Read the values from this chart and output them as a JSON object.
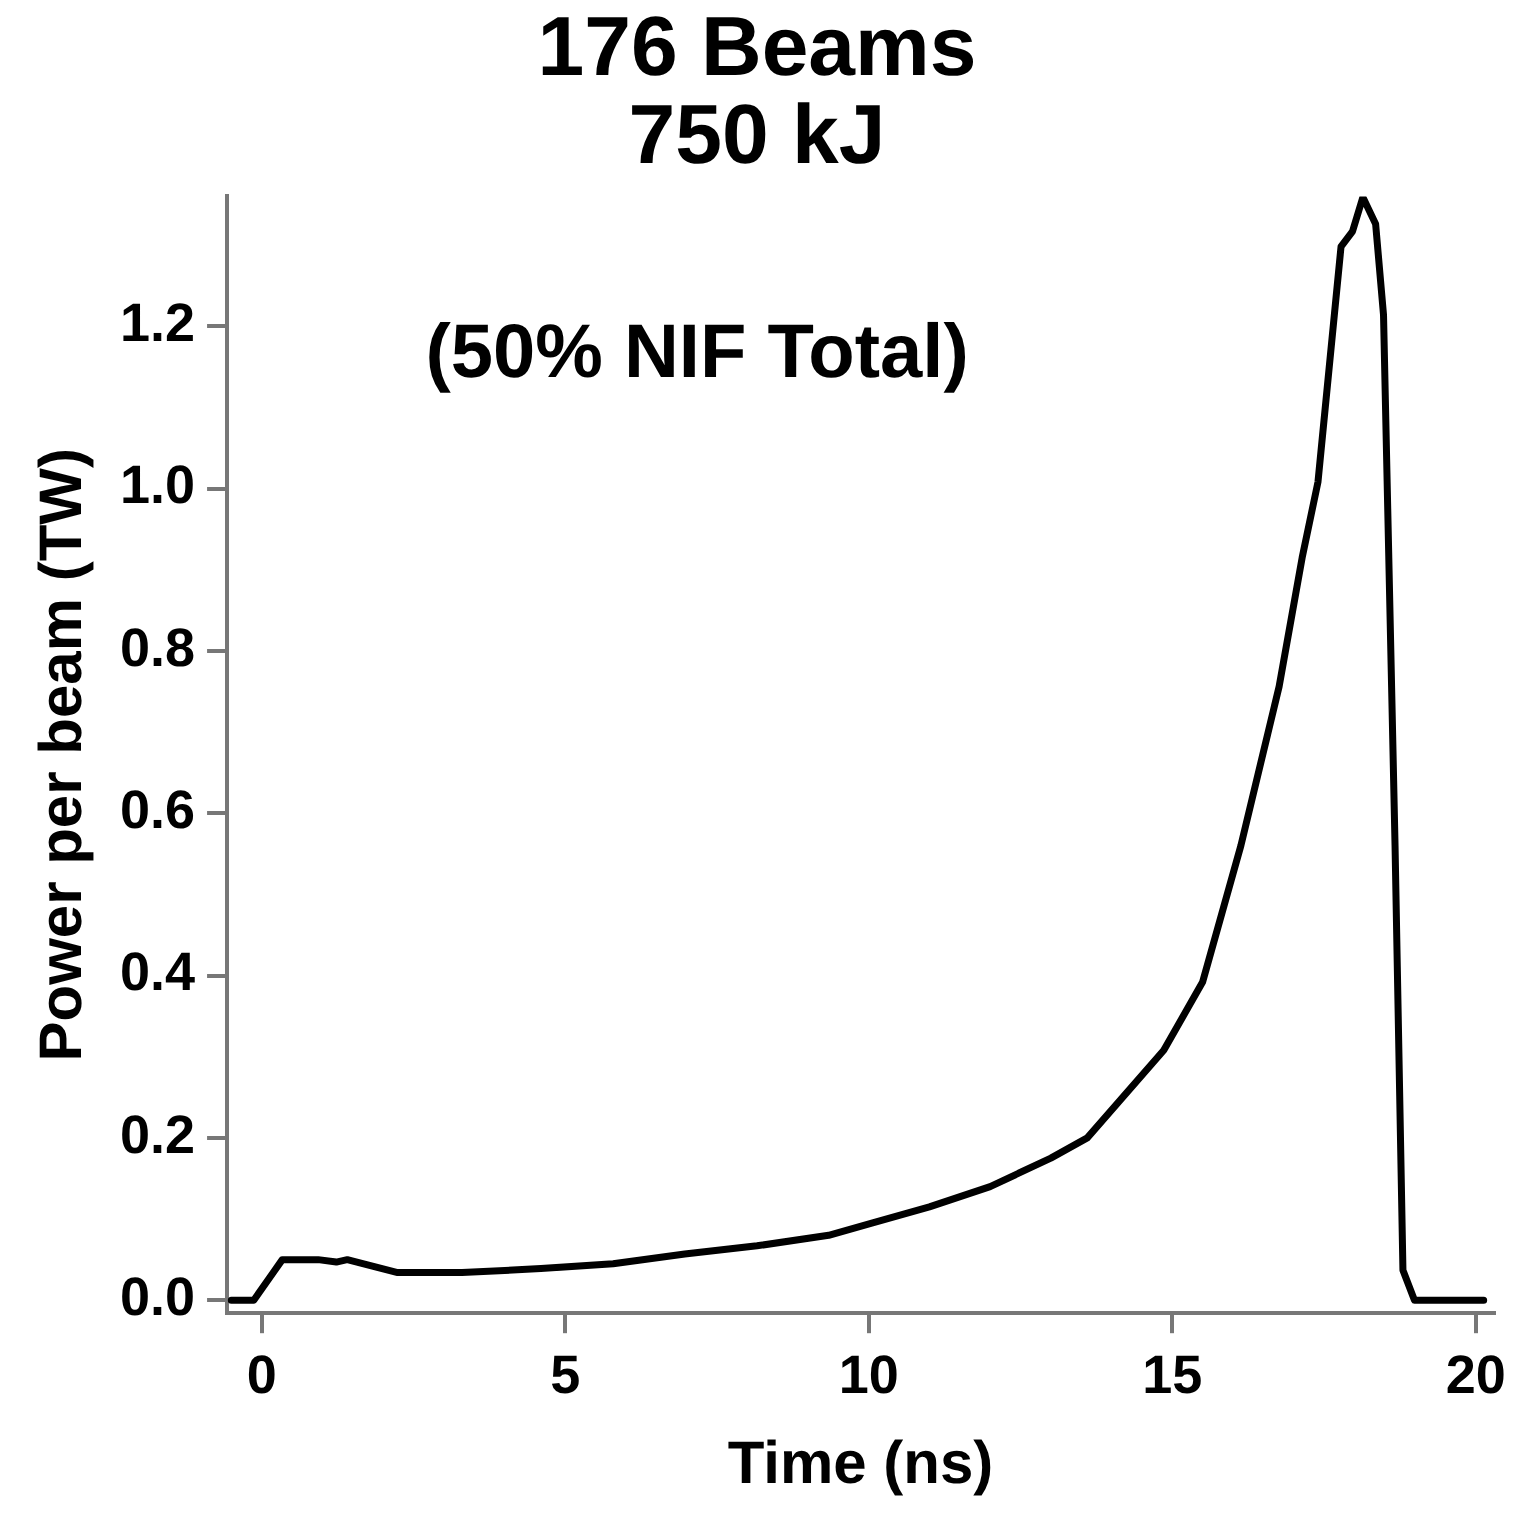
{
  "chart_data": {
    "type": "line",
    "title": "176 Beams\n750 kJ",
    "xlabel": "Time (ns)",
    "ylabel": "Power per beam (TW)",
    "annotations": [
      "(50% NIF Total)"
    ],
    "x": [
      -0.5,
      -0.37,
      -0.13,
      0.34,
      0.93,
      1.23,
      1.41,
      2.24,
      3.3,
      4.6,
      5.79,
      6.97,
      8.16,
      9.34,
      10.05,
      11,
      12,
      13,
      13.6,
      14.86,
      15.5,
      16.13,
      16.76,
      17.14,
      17.4,
      17.78,
      17.97,
      18.14,
      18.35,
      18.48,
      18.67,
      18.8,
      18.99,
      20.13
    ],
    "series": [
      {
        "color": "#000000",
        "values": [
          0,
          0,
          0,
          0.05,
          0.05,
          0.047,
          0.05,
          0.034,
          0.034,
          0.039,
          0.045,
          0.057,
          0.067,
          0.08,
          0.095,
          0.115,
          0.14,
          0.175,
          0.2,
          0.308,
          0.392,
          0.56,
          0.756,
          0.915,
          1.008,
          1.298,
          1.317,
          1.359,
          1.326,
          1.214,
          0.56,
          0.037,
          0,
          0
        ]
      }
    ],
    "xlim": [
      -0.57,
      20.3
    ],
    "xticks": [
      0,
      5,
      10,
      15,
      20
    ],
    "ylim": [
      -0.016,
      1.36
    ],
    "yticks": [
      {
        "value": 0,
        "label": "0.0"
      },
      0.2,
      0.4,
      0.6,
      0.8,
      {
        "value": 1,
        "label": "1.0"
      },
      1.2
    ],
    "grid": false,
    "legend": false,
    "marker": "none",
    "line_style": "solid"
  }
}
